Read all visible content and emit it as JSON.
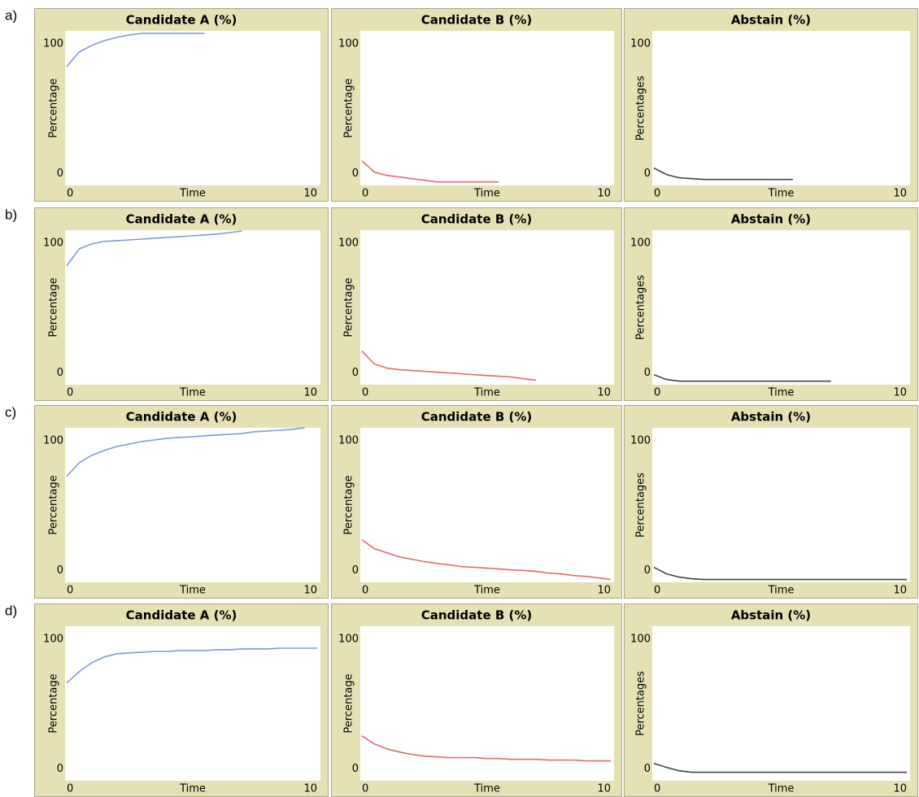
{
  "row_labels": [
    "a)",
    "b)",
    "c)",
    "d)"
  ],
  "chart_data": [
    {
      "type": "line",
      "title": "Candidate A (%)",
      "xlabel": "Time",
      "ylabel": "Percentage",
      "color": "#7b9bd6",
      "xlim": [
        0,
        10
      ],
      "ylim": [
        -9,
        110
      ],
      "xticks": [
        0,
        10
      ],
      "yticks": [
        0,
        100
      ],
      "x": [
        0,
        0.5,
        1,
        1.5,
        2,
        2.5,
        3,
        3.5,
        4,
        4.5,
        5,
        5.5
      ],
      "values": [
        82.5,
        93.8,
        98.8,
        102.5,
        105,
        106.9,
        108.1,
        108.1,
        108.1,
        108.1,
        108.1,
        108.1
      ]
    },
    {
      "type": "line",
      "title": "Candidate B (%)",
      "xlabel": "Time",
      "ylabel": "Percentage",
      "color": "#e06c6c",
      "xlim": [
        0,
        10
      ],
      "ylim": [
        -9,
        110
      ],
      "xticks": [
        0,
        10
      ],
      "yticks": [
        0,
        100
      ],
      "x": [
        0,
        0.5,
        1,
        1.5,
        2,
        2.5,
        3,
        3.5,
        4,
        4.5,
        5,
        5.5
      ],
      "values": [
        10,
        1.3,
        -1.3,
        -2.5,
        -3.8,
        -5,
        -6.3,
        -6.3,
        -6.3,
        -6.3,
        -6.3,
        -6.3
      ]
    },
    {
      "type": "line",
      "title": "Abstain (%)",
      "xlabel": "Time",
      "ylabel": "Percentages",
      "color": "#444444",
      "xlim": [
        0,
        10
      ],
      "ylim": [
        -9,
        110
      ],
      "xticks": [
        0,
        10
      ],
      "yticks": [
        0,
        100
      ],
      "x": [
        0,
        0.5,
        1,
        1.5,
        2,
        2.5,
        3,
        3.5,
        4,
        4.5,
        5,
        5.5
      ],
      "values": [
        4.4,
        -0.6,
        -3.1,
        -3.8,
        -4.4,
        -4.4,
        -4.4,
        -4.4,
        -4.4,
        -4.4,
        -4.4,
        -4.4
      ]
    },
    {
      "type": "line",
      "title": "Candidate A (%)",
      "xlabel": "Time",
      "ylabel": "Percentage",
      "color": "#7b9bd6",
      "xlim": [
        0,
        10
      ],
      "ylim": [
        -9,
        110
      ],
      "xticks": [
        0,
        10
      ],
      "yticks": [
        0,
        100
      ],
      "x": [
        0,
        0.5,
        1,
        1.5,
        2,
        2.5,
        3,
        3.5,
        4,
        4.5,
        5,
        5.5,
        6,
        6.5,
        7
      ],
      "values": [
        82.5,
        95.6,
        99.4,
        101.3,
        101.9,
        102.5,
        103.1,
        103.8,
        104.4,
        105,
        105.6,
        106.3,
        106.9,
        108.1,
        109.4
      ]
    },
    {
      "type": "line",
      "title": "Candidate B (%)",
      "xlabel": "Time",
      "ylabel": "Percentage",
      "color": "#e06c6c",
      "xlim": [
        0,
        10
      ],
      "ylim": [
        -9,
        110
      ],
      "xticks": [
        0,
        10
      ],
      "yticks": [
        0,
        100
      ],
      "x": [
        0,
        0.5,
        1,
        1.5,
        2,
        2.5,
        3,
        3.5,
        4,
        4.5,
        5,
        5.5,
        6,
        6.5,
        7
      ],
      "values": [
        16.9,
        6.9,
        3.8,
        2.5,
        1.9,
        1.3,
        0.6,
        0,
        -0.6,
        -1.3,
        -1.9,
        -2.5,
        -3.1,
        -4.4,
        -5.6
      ]
    },
    {
      "type": "line",
      "title": "Abstain (%)",
      "xlabel": "Time",
      "ylabel": "Percentages",
      "color": "#444444",
      "xlim": [
        0,
        10
      ],
      "ylim": [
        -9,
        110
      ],
      "xticks": [
        0,
        10
      ],
      "yticks": [
        0,
        100
      ],
      "x": [
        0,
        0.5,
        1,
        1.5,
        2,
        2.5,
        3,
        3.5,
        4,
        4.5,
        5,
        5.5,
        6,
        6.5,
        7
      ],
      "values": [
        -1.3,
        -5,
        -6.3,
        -6.3,
        -6.3,
        -6.3,
        -6.3,
        -6.3,
        -6.3,
        -6.3,
        -6.3,
        -6.3,
        -6.3,
        -6.3,
        -6.3
      ]
    },
    {
      "type": "line",
      "title": "Candidate A (%)",
      "xlabel": "Time",
      "ylabel": "Percentage",
      "color": "#7b9bd6",
      "xlim": [
        0,
        10
      ],
      "ylim": [
        -9,
        110
      ],
      "xticks": [
        0,
        10
      ],
      "yticks": [
        0,
        100
      ],
      "x": [
        0,
        0.5,
        1,
        1.5,
        2,
        2.5,
        3,
        3.5,
        4,
        4.5,
        5,
        5.5,
        6,
        6.5,
        7,
        7.5,
        8,
        8.5,
        9,
        9.5
      ],
      "values": [
        72.5,
        83.1,
        88.8,
        92.5,
        95.6,
        97.5,
        99.4,
        100.6,
        101.9,
        102.5,
        103.1,
        103.8,
        104.4,
        105,
        105.6,
        106.9,
        107.5,
        108.1,
        108.8,
        110
      ]
    },
    {
      "type": "line",
      "title": "Candidate B (%)",
      "xlabel": "Time",
      "ylabel": "Percentage",
      "color": "#e06c6c",
      "xlim": [
        0,
        10
      ],
      "ylim": [
        -9,
        110
      ],
      "xticks": [
        0,
        10
      ],
      "yticks": [
        0,
        100
      ],
      "x": [
        0,
        0.5,
        1,
        1.5,
        2,
        2.5,
        3,
        3.5,
        4,
        4.5,
        5,
        5.5,
        6,
        6.5,
        7,
        7.5,
        8,
        8.5,
        9,
        9.5,
        10
      ],
      "values": [
        23.8,
        16.9,
        13.8,
        10.6,
        8.8,
        6.9,
        5.6,
        4.4,
        3.1,
        2.5,
        1.9,
        1.3,
        0.6,
        0,
        -0.6,
        -1.9,
        -2.5,
        -3.8,
        -4.4,
        -5.6,
        -6.9
      ]
    },
    {
      "type": "line",
      "title": "Abstain (%)",
      "xlabel": "Time",
      "ylabel": "Percentages",
      "color": "#444444",
      "xlim": [
        0,
        10
      ],
      "ylim": [
        -9,
        110
      ],
      "xticks": [
        0,
        10
      ],
      "yticks": [
        0,
        100
      ],
      "x": [
        0,
        0.5,
        1,
        1.5,
        2,
        2.5,
        3,
        3.5,
        4,
        4.5,
        5,
        5.5,
        6,
        6.5,
        7,
        7.5,
        8,
        8.5,
        9,
        9.5,
        10
      ],
      "values": [
        2.5,
        -2.5,
        -5,
        -6.3,
        -6.9,
        -6.9,
        -6.9,
        -6.9,
        -6.9,
        -6.9,
        -6.9,
        -6.9,
        -6.9,
        -6.9,
        -6.9,
        -6.9,
        -6.9,
        -6.9,
        -6.9,
        -6.9,
        -6.9
      ]
    },
    {
      "type": "line",
      "title": "Candidate A (%)",
      "xlabel": "Time",
      "ylabel": "Percentage",
      "color": "#7b9bd6",
      "xlim": [
        0,
        10
      ],
      "ylim": [
        -9,
        110
      ],
      "xticks": [
        0,
        10
      ],
      "yticks": [
        0,
        100
      ],
      "x": [
        0,
        0.5,
        1,
        1.5,
        2,
        2.5,
        3,
        3.5,
        4,
        4.5,
        5,
        5.5,
        6,
        6.5,
        7,
        7.5,
        8,
        8.5,
        9,
        9.5,
        10
      ],
      "values": [
        66.3,
        75,
        81.9,
        86.3,
        88.8,
        89.4,
        90,
        90.6,
        90.6,
        91.3,
        91.3,
        91.3,
        91.9,
        91.9,
        92.5,
        92.5,
        92.5,
        93.1,
        93.1,
        93.1,
        93.1
      ]
    },
    {
      "type": "line",
      "title": "Candidate B (%)",
      "xlabel": "Time",
      "ylabel": "Percentage",
      "color": "#e06c6c",
      "xlim": [
        0,
        10
      ],
      "ylim": [
        -9,
        110
      ],
      "xticks": [
        0,
        10
      ],
      "yticks": [
        0,
        100
      ],
      "x": [
        0,
        0.5,
        1,
        1.5,
        2,
        2.5,
        3,
        3.5,
        4,
        4.5,
        5,
        5.5,
        6,
        6.5,
        7,
        7.5,
        8,
        8.5,
        9,
        9.5,
        10
      ],
      "values": [
        25.6,
        19.4,
        15.6,
        13.1,
        11.3,
        10,
        9.4,
        8.8,
        8.8,
        8.8,
        8.1,
        8.1,
        7.5,
        7.5,
        7.5,
        6.9,
        6.9,
        6.9,
        6.3,
        6.3,
        6.3
      ]
    },
    {
      "type": "line",
      "title": "Abstain (%)",
      "xlabel": "Time",
      "ylabel": "Percentages",
      "color": "#444444",
      "xlim": [
        0,
        10
      ],
      "ylim": [
        -9,
        110
      ],
      "xticks": [
        0,
        10
      ],
      "yticks": [
        0,
        100
      ],
      "x": [
        0,
        0.5,
        1,
        1.5,
        2,
        2.5,
        3,
        3.5,
        4,
        4.5,
        5,
        5.5,
        6,
        6.5,
        7,
        7.5,
        8,
        8.5,
        9,
        9.5,
        10
      ],
      "values": [
        4.4,
        1.3,
        -1.3,
        -2.5,
        -2.5,
        -2.5,
        -2.5,
        -2.5,
        -2.5,
        -2.5,
        -2.5,
        -2.5,
        -2.5,
        -2.5,
        -2.5,
        -2.5,
        -2.5,
        -2.5,
        -2.5,
        -2.5,
        -2.5
      ]
    }
  ]
}
